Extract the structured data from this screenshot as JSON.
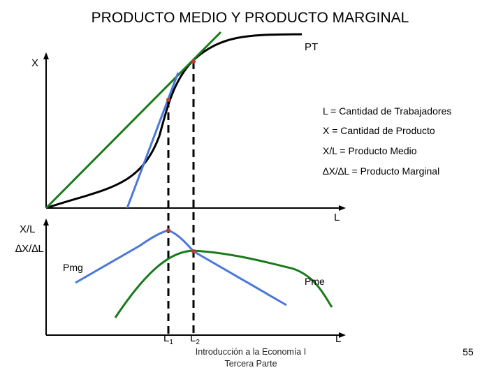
{
  "title": "PRODUCTO MEDIO Y PRODUCTO MARGINAL",
  "top_panel": {
    "y_axis_label": "X",
    "x_axis_label": "L",
    "curve_label": "PT",
    "legend": [
      "L = Cantidad de Trabajadores",
      "X = Cantidad de Producto",
      "X/L = Producto Medio",
      "∆X/∆L = Producto Marginal"
    ]
  },
  "bottom_panel": {
    "y_axis_label_1": "X/L",
    "y_axis_label_2": "∆X/∆L",
    "x_axis_label": "L",
    "pmg_label": "Pmg",
    "pme_label": "Pme",
    "l1_label": "L",
    "l1_sub": "1",
    "l2_label": "L",
    "l2_sub": "2"
  },
  "footer": {
    "line1": "Introducción a la Economía I",
    "line2": "Tercera Parte",
    "page_number": "55"
  },
  "colors": {
    "total_product": "#000000",
    "average_ray": "#1a7a1a",
    "marginal_tangent": "#4a78d8",
    "pmg_curve": "#4a78d8",
    "pme_curve": "#1a7a1a",
    "point_marker": "#c0392b"
  }
}
